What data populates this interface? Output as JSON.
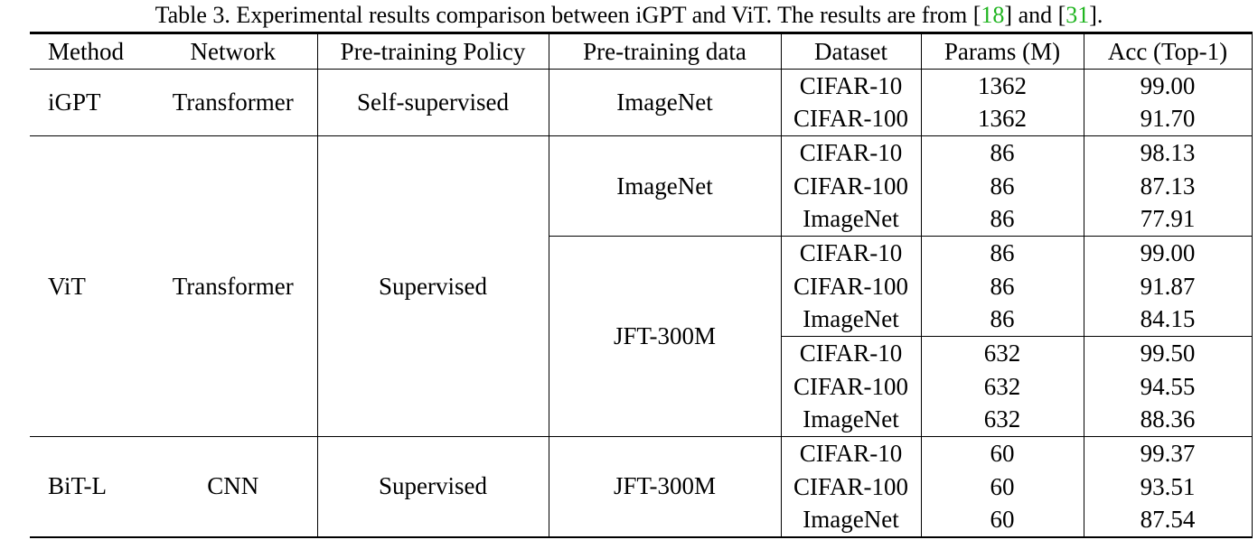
{
  "caption": {
    "prefix": "Table 3. Experimental results comparison between iGPT and ViT. The results are from [",
    "ref1": "18",
    "middle": "] and [",
    "ref2": "31",
    "suffix": "]."
  },
  "headers": [
    "Method",
    "Network",
    "Pre-training Policy",
    "Pre-training data",
    "Dataset",
    "Params (M)",
    "Acc (Top-1)"
  ],
  "groups": {
    "igpt": {
      "method": "iGPT",
      "network": "Transformer",
      "policy": "Self-supervised",
      "data": "ImageNet",
      "rows": [
        {
          "dataset": "CIFAR-10",
          "params": "1362",
          "acc": "99.00"
        },
        {
          "dataset": "CIFAR-100",
          "params": "1362",
          "acc": "91.70"
        }
      ]
    },
    "vit": {
      "method": "ViT",
      "network": "Transformer",
      "policy": "Supervised",
      "data1": "ImageNet",
      "data2": "JFT-300M",
      "rows": [
        {
          "dataset": "CIFAR-10",
          "params": "86",
          "acc": "98.13"
        },
        {
          "dataset": "CIFAR-100",
          "params": "86",
          "acc": "87.13"
        },
        {
          "dataset": "ImageNet",
          "params": "86",
          "acc": "77.91"
        },
        {
          "dataset": "CIFAR-10",
          "params": "86",
          "acc": "99.00"
        },
        {
          "dataset": "CIFAR-100",
          "params": "86",
          "acc": "91.87"
        },
        {
          "dataset": "ImageNet",
          "params": "86",
          "acc": "84.15"
        },
        {
          "dataset": "CIFAR-10",
          "params": "632",
          "acc": "99.50"
        },
        {
          "dataset": "CIFAR-100",
          "params": "632",
          "acc": "94.55"
        },
        {
          "dataset": "ImageNet",
          "params": "632",
          "acc": "88.36"
        }
      ]
    },
    "bit": {
      "method": "BiT-L",
      "network": "CNN",
      "policy": "Supervised",
      "data": "JFT-300M",
      "rows": [
        {
          "dataset": "CIFAR-10",
          "params": "60",
          "acc": "99.37"
        },
        {
          "dataset": "CIFAR-100",
          "params": "60",
          "acc": "93.51"
        },
        {
          "dataset": "ImageNet",
          "params": "60",
          "acc": "87.54"
        }
      ]
    }
  },
  "colors": {
    "reference_link": "#1fb41f",
    "text": "#000000"
  }
}
